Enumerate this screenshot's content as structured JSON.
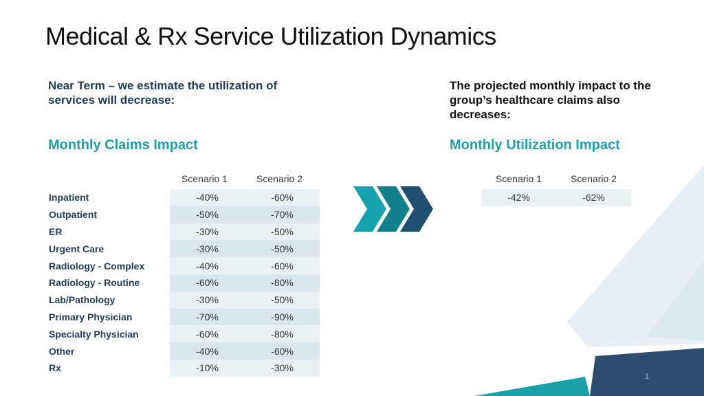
{
  "slide": {
    "title": "Medical & Rx Service Utilization Dynamics",
    "page_number": "1"
  },
  "left": {
    "intro": "Near Term – we estimate the utilization of services will decrease:",
    "section_title": "Monthly Claims Impact",
    "columns": [
      "Scenario 1",
      "Scenario 2"
    ],
    "rows": [
      {
        "label": "Inpatient",
        "s1": "-40%",
        "s2": "-60%"
      },
      {
        "label": "Outpatient",
        "s1": "-50%",
        "s2": "-70%"
      },
      {
        "label": "ER",
        "s1": "-30%",
        "s2": "-50%"
      },
      {
        "label": "Urgent Care",
        "s1": "-30%",
        "s2": "-50%"
      },
      {
        "label": "Radiology - Complex",
        "s1": "-40%",
        "s2": "-60%"
      },
      {
        "label": "Radiology - Routine",
        "s1": "-60%",
        "s2": "-80%"
      },
      {
        "label": "Lab/Pathology",
        "s1": "-30%",
        "s2": "-50%"
      },
      {
        "label": "Primary Physician",
        "s1": "-70%",
        "s2": "-90%"
      },
      {
        "label": "Specialty Physician",
        "s1": "-60%",
        "s2": "-80%"
      },
      {
        "label": "Other",
        "s1": "-40%",
        "s2": "-60%"
      },
      {
        "label": "Rx",
        "s1": "-10%",
        "s2": "-30%"
      }
    ]
  },
  "right": {
    "intro": "The projected monthly impact to the group’s healthcare claims also decreases:",
    "section_title": "Monthly Utilization Impact",
    "columns": [
      "Scenario 1",
      "Scenario 2"
    ],
    "values": [
      "-42%",
      "-62%"
    ]
  },
  "colors": {
    "accent_teal": "#1aa0a8",
    "dark_navy": "#1f3b5c",
    "chevron_1": "#17a2b0",
    "chevron_2": "#12808c",
    "chevron_3": "#1e4f70",
    "deco_navy": "#2e4d6e",
    "deco_light": "#e8eff4"
  }
}
